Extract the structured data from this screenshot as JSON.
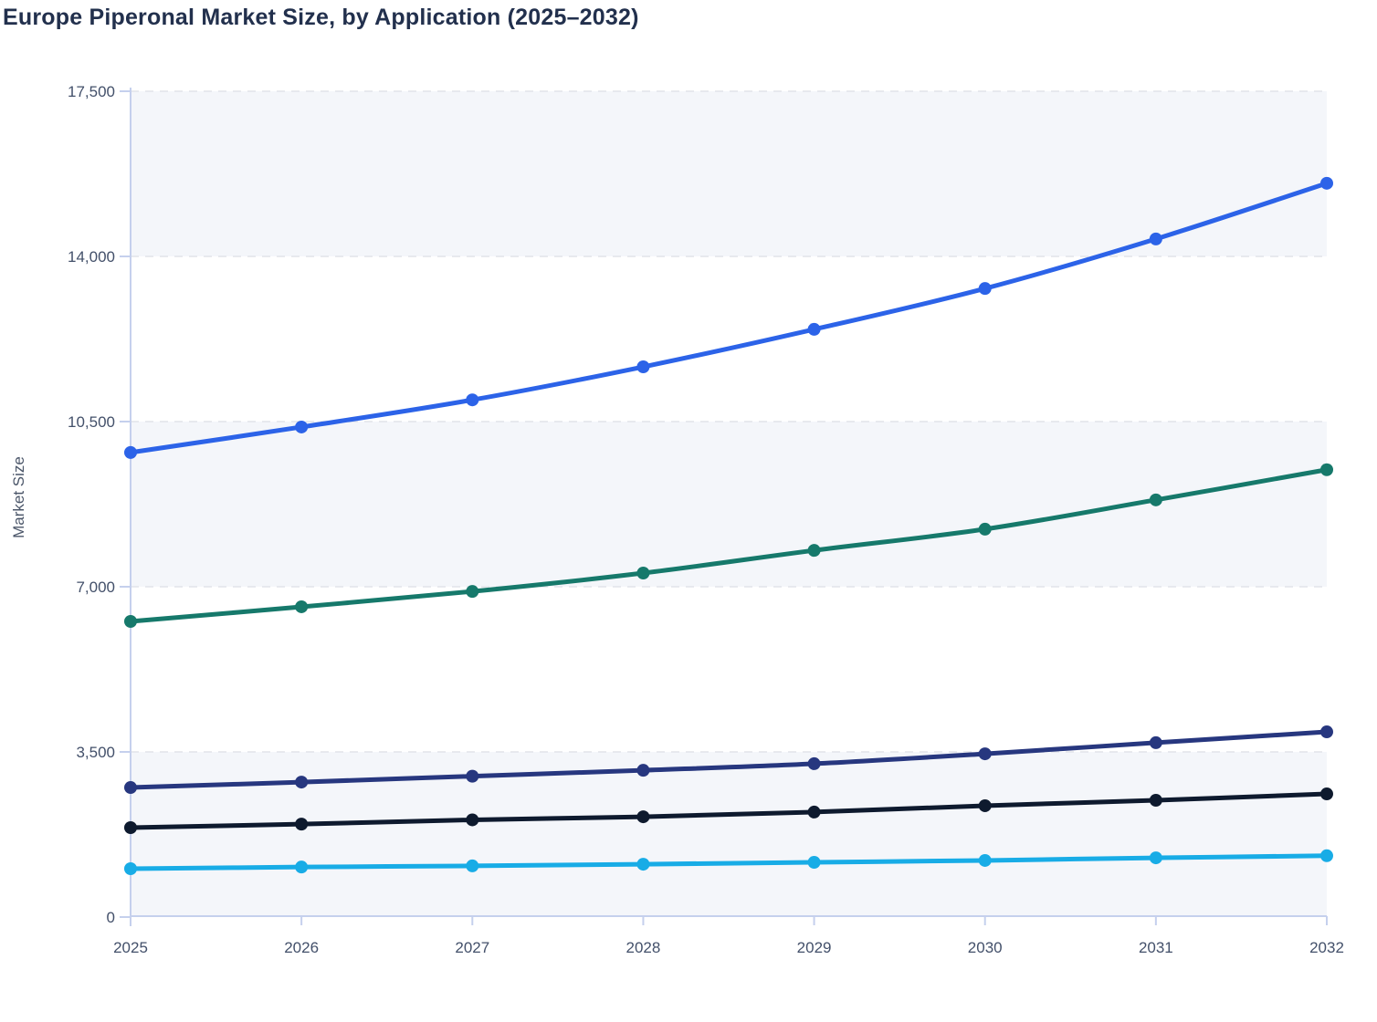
{
  "page": {
    "title": "Europe Piperonal Market Size, by Application (2025–2032)"
  },
  "colors": {
    "title_color": "#22304d",
    "label_color": "#43506a",
    "axis_color": "#c5d0ed",
    "grid_color": "#e2e4e9",
    "band_fill": "#f4f6fa",
    "background": "#ffffff"
  },
  "chart_data": {
    "type": "line",
    "title": "Europe Piperonal Market Size, by Application (2025–2032)",
    "xlabel": "",
    "ylabel": "Market Size",
    "x": [
      2025,
      2026,
      2027,
      2028,
      2029,
      2030,
      2031,
      2032
    ],
    "x_tick_labels": [
      "2025",
      "2026",
      "2027",
      "2028",
      "2029",
      "2030",
      "2031",
      "2032"
    ],
    "y_ticks": [
      0,
      3500,
      7000,
      10500,
      14000,
      17500
    ],
    "y_tick_labels": [
      "0",
      "3,500",
      "7,000",
      "10,500",
      "14,000",
      "17,500"
    ],
    "ylim": [
      0,
      17500
    ],
    "grid": "horizontal-dashed",
    "plot_bands": "alternating light fill between 17500–14000, 10500–7000, 3500–0",
    "legend": "none",
    "marker": "circle",
    "series": [
      {
        "name": "series-1-blue",
        "color": "#2c63e8",
        "values": [
          9845,
          10385,
          10960,
          11660,
          12455,
          13320,
          14370,
          15550
        ]
      },
      {
        "name": "series-2-teal",
        "color": "#16796b",
        "values": [
          6265,
          6575,
          6900,
          7290,
          7770,
          8220,
          8840,
          9480
        ]
      },
      {
        "name": "series-3-navy",
        "color": "#27377f",
        "values": [
          2745,
          2860,
          2985,
          3110,
          3250,
          3460,
          3695,
          3925
        ]
      },
      {
        "name": "series-4-black",
        "color": "#0e1a2e",
        "values": [
          1895,
          1970,
          2060,
          2125,
          2225,
          2360,
          2475,
          2610
        ]
      },
      {
        "name": "series-5-cyan",
        "color": "#18ace6",
        "values": [
          1025,
          1060,
          1085,
          1120,
          1160,
          1200,
          1255,
          1300
        ]
      }
    ]
  }
}
